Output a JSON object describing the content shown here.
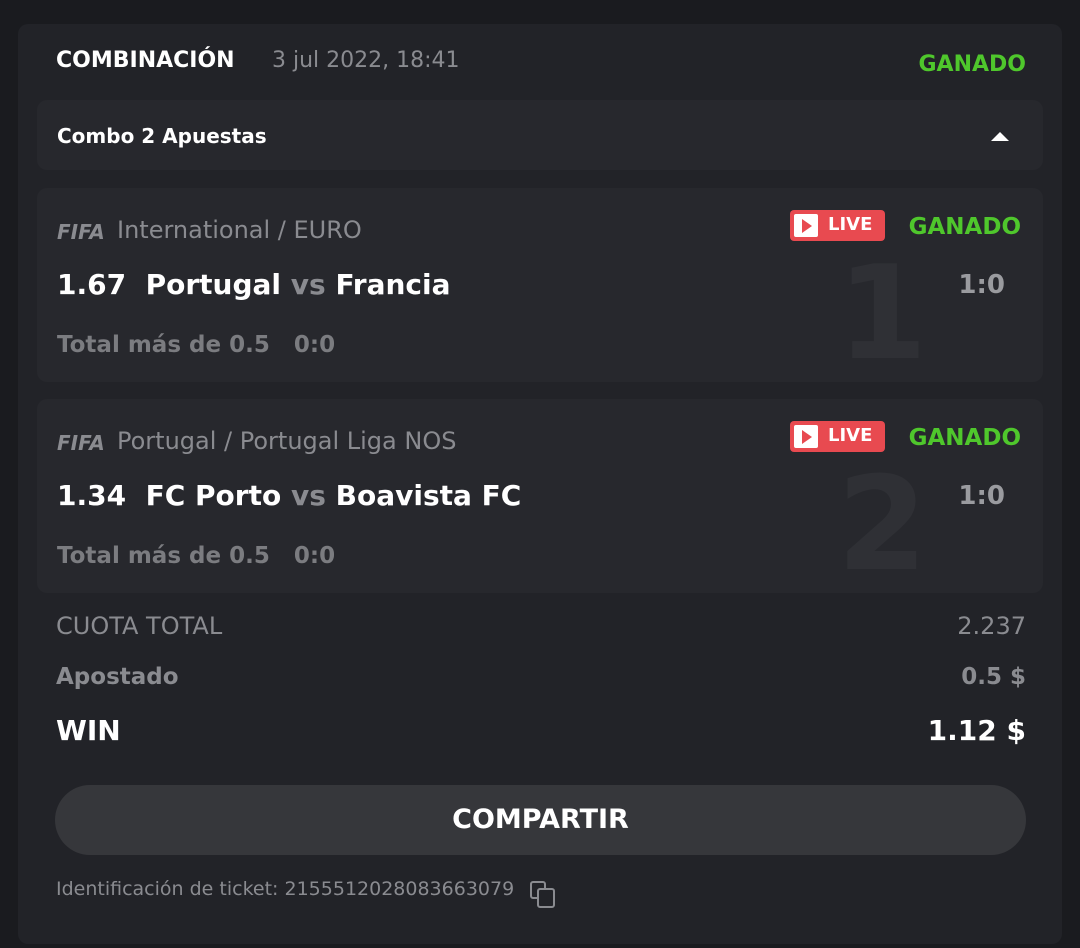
{
  "header": {
    "title": "COMBINACIÓN",
    "date": "3 jul 2022, 18:41",
    "status": "GANADO"
  },
  "combo": {
    "label": "Combo 2 Apuestas",
    "icon": "triangle-up-icon"
  },
  "bets": [
    {
      "sport": "FIFA",
      "league": "International / EURO",
      "odds": "1.67",
      "home": "Portugal",
      "vs": "vs",
      "away": "Francia",
      "market": "Total más de 0.5",
      "market_score": "0:0",
      "live": "LIVE",
      "status": "GANADO",
      "index": "1",
      "score": "1:0"
    },
    {
      "sport": "FIFA",
      "league": "Portugal / Portugal Liga NOS",
      "odds": "1.34",
      "home": "FC Porto",
      "vs": "vs",
      "away": "Boavista FC",
      "market": "Total más de 0.5",
      "market_score": "0:0",
      "live": "LIVE",
      "status": "GANADO",
      "index": "2",
      "score": "1:0"
    }
  ],
  "summary": {
    "total_odds_label": "CUOTA TOTAL",
    "total_odds": "2.237",
    "staked_label": "Apostado",
    "staked": "0.5 $",
    "win_label": "WIN",
    "win": "1.12 $"
  },
  "share_label": "COMPARTIR",
  "ticket": {
    "label": "Identificación de ticket:",
    "id": "2155512028083663079"
  },
  "colors": {
    "won": "#4fc72c",
    "live": "#e84a50",
    "background": "#1a1b1f",
    "card": "#222328"
  }
}
